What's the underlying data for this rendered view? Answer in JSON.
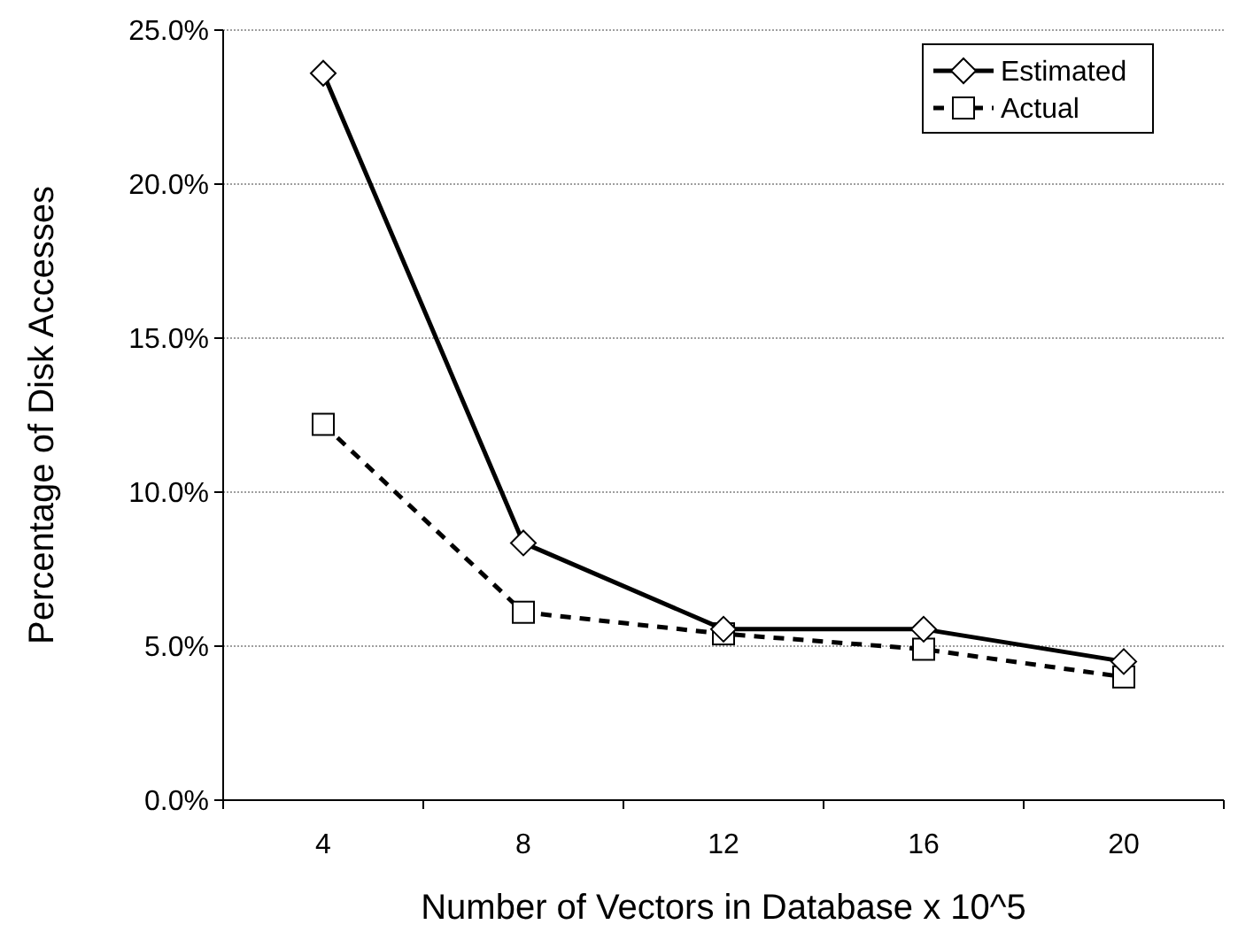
{
  "chart_data": {
    "type": "line",
    "xlabel": "Number of Vectors in Database x 10^5",
    "ylabel": "Percentage of Disk Accesses",
    "categories": [
      "4",
      "8",
      "12",
      "16",
      "20"
    ],
    "series": [
      {
        "name": "Estimated",
        "color": "#000000",
        "values": [
          23.6,
          8.35,
          5.55,
          5.55,
          4.5
        ],
        "marker": "diamond",
        "line_style": "solid"
      },
      {
        "name": "Actual",
        "color": "#000000",
        "values": [
          12.2,
          6.1,
          5.4,
          4.9,
          4.0
        ],
        "marker": "square",
        "line_style": "dashed"
      }
    ],
    "ylim": [
      0,
      25
    ],
    "yticks": [
      {
        "value": 0,
        "label": "0.0%"
      },
      {
        "value": 5,
        "label": "5.0%"
      },
      {
        "value": 10,
        "label": "10.0%"
      },
      {
        "value": 15,
        "label": "15.0%"
      },
      {
        "value": 20,
        "label": "20.0%"
      },
      {
        "value": 25,
        "label": "25.0%"
      }
    ],
    "grid": "y",
    "legend": "top right"
  }
}
